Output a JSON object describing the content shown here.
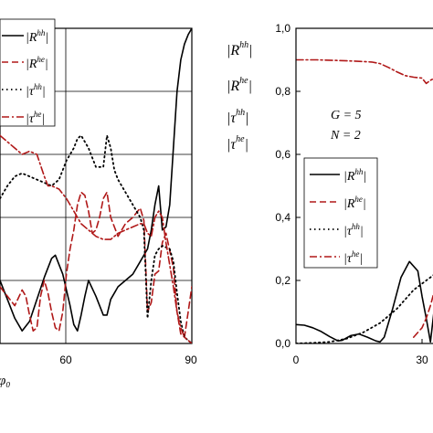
{
  "colors": {
    "solid": "#000000",
    "dashed": "#b01818",
    "dotted": "#000000",
    "dashdot": "#b01818"
  },
  "chart_data": [
    {
      "type": "line",
      "title": "",
      "xlabel": "φ₀",
      "ylabel": "",
      "xlim": [
        38,
        90
      ],
      "ylim": [
        0,
        1.0
      ],
      "xticks": [
        "60",
        "90"
      ],
      "yticks": [],
      "grid": true,
      "legend_position": "top-left",
      "legend": [
        {
          "base": "|R",
          "sup": "hh",
          "tail": "|",
          "style": "solid"
        },
        {
          "base": "|R",
          "sup": "he",
          "tail": "|",
          "style": "dashed"
        },
        {
          "base": "|τ",
          "sup": "hh",
          "tail": "|",
          "style": "dotted"
        },
        {
          "base": "|τ",
          "sup": "he",
          "tail": "|",
          "style": "dashdot"
        }
      ],
      "series": [
        {
          "style": "solid",
          "values": [
            [
              38,
              0.2
            ],
            [
              40,
              0.14
            ],
            [
              42,
              0.08
            ],
            [
              44,
              0.04
            ],
            [
              46,
              0.07
            ],
            [
              48,
              0.14
            ],
            [
              50,
              0.21
            ],
            [
              52,
              0.27
            ],
            [
              53,
              0.28
            ],
            [
              55,
              0.22
            ],
            [
              57,
              0.12
            ],
            [
              58,
              0.06
            ],
            [
              59,
              0.04
            ],
            [
              60,
              0.09
            ],
            [
              61,
              0.15
            ],
            [
              62,
              0.2
            ],
            [
              64,
              0.15
            ],
            [
              66,
              0.09
            ],
            [
              67,
              0.09
            ],
            [
              68,
              0.14
            ],
            [
              70,
              0.18
            ],
            [
              72,
              0.2
            ],
            [
              74,
              0.22
            ],
            [
              76,
              0.26
            ],
            [
              77,
              0.28
            ],
            [
              78,
              0.3
            ],
            [
              79,
              0.36
            ],
            [
              80,
              0.44
            ],
            [
              81,
              0.5
            ],
            [
              82,
              0.36
            ],
            [
              83,
              0.37
            ],
            [
              84,
              0.44
            ],
            [
              85,
              0.62
            ],
            [
              86,
              0.8
            ],
            [
              87,
              0.9
            ],
            [
              88,
              0.95
            ],
            [
              89,
              0.98
            ],
            [
              90,
              1.0
            ]
          ]
        },
        {
          "style": "dashed",
          "values": [
            [
              38,
              0.18
            ],
            [
              40,
              0.15
            ],
            [
              42,
              0.12
            ],
            [
              44,
              0.17
            ],
            [
              45,
              0.15
            ],
            [
              46,
              0.09
            ],
            [
              47,
              0.04
            ],
            [
              48,
              0.05
            ],
            [
              49,
              0.15
            ],
            [
              50,
              0.2
            ],
            [
              51,
              0.16
            ],
            [
              52,
              0.1
            ],
            [
              53,
              0.05
            ],
            [
              54,
              0.04
            ],
            [
              55,
              0.1
            ],
            [
              56,
              0.22
            ],
            [
              57,
              0.3
            ],
            [
              58,
              0.36
            ],
            [
              59,
              0.44
            ],
            [
              60,
              0.48
            ],
            [
              61,
              0.47
            ],
            [
              62,
              0.42
            ],
            [
              63,
              0.35
            ],
            [
              64,
              0.36
            ],
            [
              65,
              0.4
            ],
            [
              66,
              0.46
            ],
            [
              67,
              0.48
            ],
            [
              68,
              0.4
            ],
            [
              70,
              0.34
            ],
            [
              72,
              0.38
            ],
            [
              74,
              0.4
            ],
            [
              76,
              0.43
            ],
            [
              77,
              0.39
            ],
            [
              78,
              0.1
            ],
            [
              79,
              0.13
            ],
            [
              80,
              0.22
            ],
            [
              81,
              0.23
            ],
            [
              82,
              0.32
            ],
            [
              83,
              0.35
            ],
            [
              85,
              0.24
            ],
            [
              86,
              0.1
            ],
            [
              87,
              0.03
            ],
            [
              88,
              0.02
            ],
            [
              89,
              0.1
            ],
            [
              90,
              0.18
            ]
          ]
        },
        {
          "style": "dotted",
          "values": [
            [
              38,
              0.46
            ],
            [
              40,
              0.5
            ],
            [
              42,
              0.53
            ],
            [
              44,
              0.54
            ],
            [
              46,
              0.53
            ],
            [
              48,
              0.52
            ],
            [
              50,
              0.51
            ],
            [
              52,
              0.5
            ],
            [
              54,
              0.52
            ],
            [
              56,
              0.58
            ],
            [
              58,
              0.62
            ],
            [
              59,
              0.65
            ],
            [
              60,
              0.66
            ],
            [
              62,
              0.62
            ],
            [
              64,
              0.56
            ],
            [
              66,
              0.56
            ],
            [
              67,
              0.66
            ],
            [
              68,
              0.62
            ],
            [
              69,
              0.55
            ],
            [
              70,
              0.52
            ],
            [
              72,
              0.48
            ],
            [
              74,
              0.44
            ],
            [
              76,
              0.4
            ],
            [
              77,
              0.36
            ],
            [
              78,
              0.08
            ],
            [
              79,
              0.2
            ],
            [
              80,
              0.28
            ],
            [
              81,
              0.3
            ],
            [
              82,
              0.31
            ],
            [
              84,
              0.3
            ],
            [
              85,
              0.26
            ],
            [
              86,
              0.16
            ],
            [
              87,
              0.07
            ],
            [
              88,
              0.02
            ],
            [
              90,
              0.0
            ]
          ]
        },
        {
          "style": "dashdot",
          "values": [
            [
              38,
              0.66
            ],
            [
              40,
              0.64
            ],
            [
              42,
              0.62
            ],
            [
              44,
              0.6
            ],
            [
              46,
              0.61
            ],
            [
              48,
              0.6
            ],
            [
              50,
              0.53
            ],
            [
              51,
              0.5
            ],
            [
              52,
              0.5
            ],
            [
              54,
              0.49
            ],
            [
              56,
              0.46
            ],
            [
              58,
              0.42
            ],
            [
              60,
              0.38
            ],
            [
              62,
              0.36
            ],
            [
              64,
              0.34
            ],
            [
              66,
              0.33
            ],
            [
              68,
              0.33
            ],
            [
              70,
              0.35
            ],
            [
              72,
              0.36
            ],
            [
              74,
              0.37
            ],
            [
              76,
              0.38
            ],
            [
              77,
              0.38
            ],
            [
              78,
              0.35
            ],
            [
              79,
              0.34
            ],
            [
              80,
              0.4
            ],
            [
              81,
              0.42
            ],
            [
              82,
              0.4
            ],
            [
              83,
              0.32
            ],
            [
              85,
              0.18
            ],
            [
              86,
              0.1
            ],
            [
              87,
              0.05
            ],
            [
              88,
              0.02
            ],
            [
              89,
              0.01
            ],
            [
              90,
              0.0
            ]
          ]
        }
      ]
    },
    {
      "type": "line",
      "title": "",
      "xlabel": "",
      "ylabel": "",
      "xlim": [
        0,
        40
      ],
      "ylim": [
        0,
        1.0
      ],
      "xticks": [
        "0",
        "30"
      ],
      "yticks": [
        "0,0",
        "0,2",
        "0,4",
        "0,6",
        "0,8",
        "1,0"
      ],
      "grid": false,
      "annotations": [
        "G = 5",
        "N = 2"
      ],
      "legend_position": "center-right",
      "legend": [
        {
          "base": "|R",
          "sup": "hh",
          "tail": "|",
          "style": "solid"
        },
        {
          "base": "|R",
          "sup": "he",
          "tail": "|",
          "style": "dashed"
        },
        {
          "base": "|τ",
          "sup": "hh",
          "tail": "|",
          "style": "dotted"
        },
        {
          "base": "|τ",
          "sup": "he",
          "tail": "|",
          "style": "dashdot"
        }
      ],
      "series": [
        {
          "style": "solid",
          "values": [
            [
              0,
              0.06
            ],
            [
              2,
              0.058
            ],
            [
              4,
              0.05
            ],
            [
              6,
              0.038
            ],
            [
              8,
              0.022
            ],
            [
              10,
              0.008
            ],
            [
              11,
              0.01
            ],
            [
              13,
              0.025
            ],
            [
              15,
              0.03
            ],
            [
              17,
              0.02
            ],
            [
              19,
              0.008
            ],
            [
              20,
              0.005
            ],
            [
              21,
              0.02
            ],
            [
              23,
              0.11
            ],
            [
              25,
              0.21
            ],
            [
              27,
              0.26
            ],
            [
              29,
              0.23
            ],
            [
              30,
              0.15
            ],
            [
              31,
              0.08
            ],
            [
              32,
              0.005
            ],
            [
              33,
              0.12
            ],
            [
              34,
              0.2
            ]
          ]
        },
        {
          "style": "dashed",
          "values": [
            [
              28,
              0.02
            ],
            [
              30,
              0.05
            ],
            [
              31,
              0.08
            ],
            [
              32,
              0.12
            ],
            [
              33,
              0.17
            ],
            [
              34,
              0.2
            ]
          ]
        },
        {
          "style": "dotted",
          "values": [
            [
              0,
              0.0
            ],
            [
              4,
              0.002
            ],
            [
              8,
              0.005
            ],
            [
              12,
              0.015
            ],
            [
              16,
              0.035
            ],
            [
              20,
              0.065
            ],
            [
              24,
              0.11
            ],
            [
              28,
              0.17
            ],
            [
              32,
              0.21
            ],
            [
              34,
              0.23
            ]
          ]
        },
        {
          "style": "dashdot",
          "values": [
            [
              0,
              0.9
            ],
            [
              5,
              0.9
            ],
            [
              10,
              0.898
            ],
            [
              14,
              0.896
            ],
            [
              18,
              0.893
            ],
            [
              20,
              0.888
            ],
            [
              22,
              0.876
            ],
            [
              24,
              0.862
            ],
            [
              26,
              0.85
            ],
            [
              28,
              0.845
            ],
            [
              30,
              0.842
            ],
            [
              31,
              0.825
            ],
            [
              32,
              0.835
            ],
            [
              34,
              0.85
            ]
          ]
        }
      ]
    }
  ]
}
